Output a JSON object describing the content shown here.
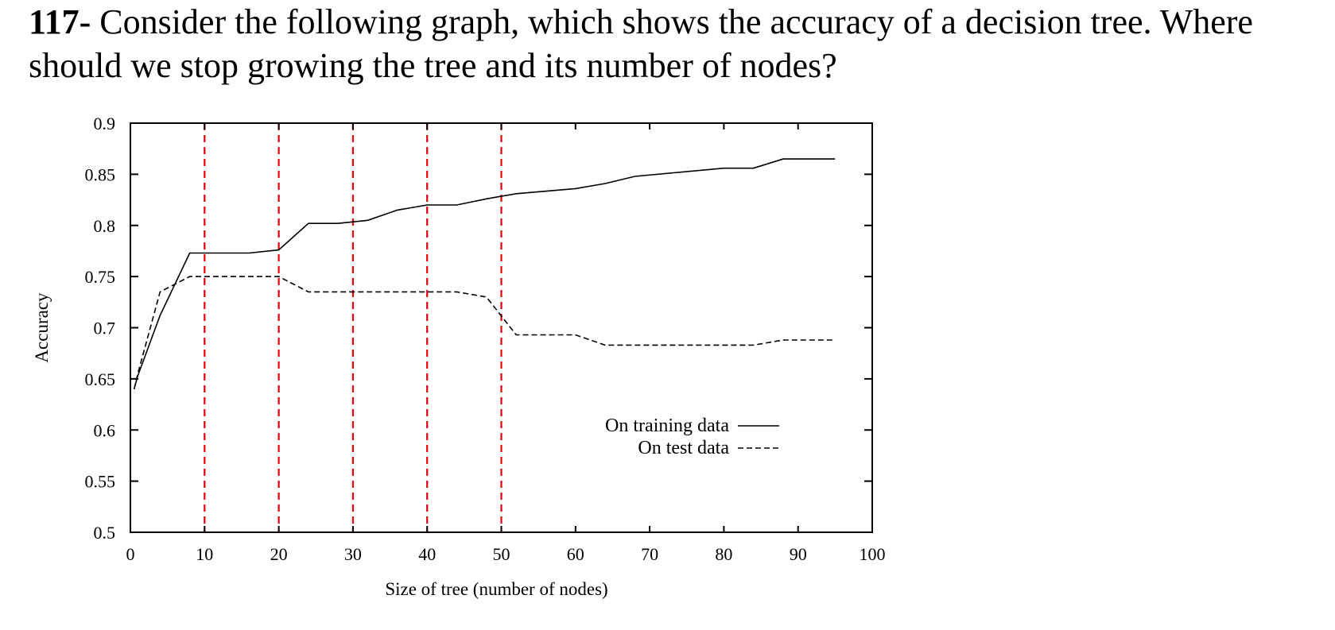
{
  "question": {
    "number": "117-",
    "text": " Consider the following graph, which shows the accuracy of a decision tree. Where should we stop growing the tree and its number of nodes?"
  },
  "chart_data": {
    "type": "line",
    "xlabel": "Size of tree (number of nodes)",
    "ylabel": "Accuracy",
    "xlim": [
      0,
      100
    ],
    "ylim": [
      0.5,
      0.9
    ],
    "xticks": [
      0,
      10,
      20,
      30,
      40,
      50,
      60,
      70,
      80,
      90,
      100
    ],
    "yticks": [
      0.5,
      0.55,
      0.6,
      0.65,
      0.7,
      0.75,
      0.8,
      0.85,
      0.9
    ],
    "ytick_labels": [
      "0.5",
      "0.55",
      "0.6",
      "0.65",
      "0.7",
      "0.75",
      "0.8",
      "0.85",
      "0.9"
    ],
    "legend_position": "lower-right",
    "reference_lines": {
      "x": [
        10,
        20,
        30,
        40,
        50
      ],
      "color": "#e8000b",
      "style": "dashed"
    },
    "series": [
      {
        "name": "On training data",
        "style": "solid",
        "x": [
          0.5,
          1,
          4,
          8,
          16,
          20,
          24,
          28,
          32,
          36,
          40,
          44,
          48,
          52,
          60,
          64,
          68,
          80,
          84,
          88,
          95
        ],
        "y": [
          0.64,
          0.653,
          0.712,
          0.773,
          0.773,
          0.776,
          0.802,
          0.802,
          0.805,
          0.815,
          0.82,
          0.82,
          0.826,
          0.831,
          0.836,
          0.841,
          0.848,
          0.856,
          0.856,
          0.865,
          0.865
        ]
      },
      {
        "name": "On test data",
        "style": "dashed",
        "x": [
          0.5,
          1,
          4,
          8,
          16,
          20,
          24,
          28,
          36,
          40,
          44,
          48,
          52,
          60,
          64,
          68,
          80,
          84,
          88,
          95
        ],
        "y": [
          0.64,
          0.655,
          0.735,
          0.75,
          0.75,
          0.75,
          0.735,
          0.735,
          0.735,
          0.735,
          0.735,
          0.73,
          0.693,
          0.693,
          0.683,
          0.683,
          0.683,
          0.683,
          0.688,
          0.688
        ]
      }
    ]
  }
}
